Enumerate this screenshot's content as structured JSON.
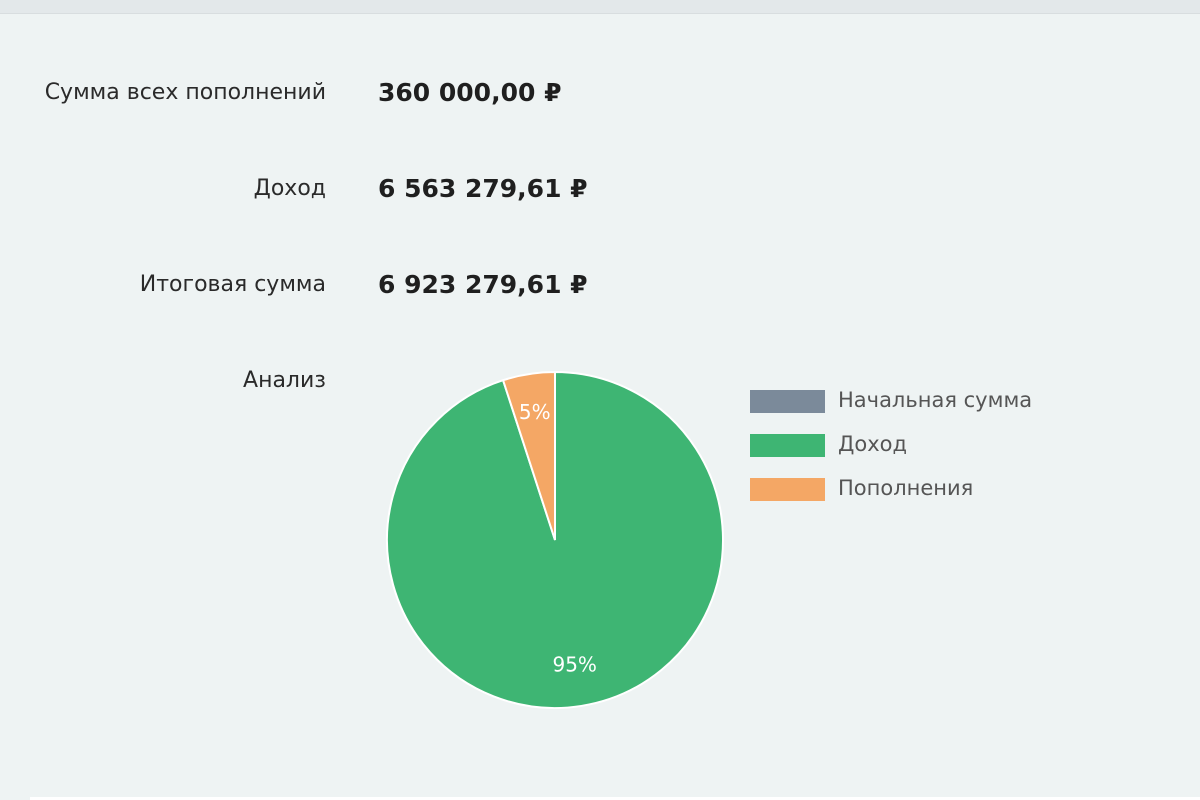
{
  "summary": {
    "deposits": {
      "label": "Сумма всех пополнений",
      "value": "360 000,00 ₽"
    },
    "income": {
      "label": "Доход",
      "value": "6 563 279,61 ₽"
    },
    "total": {
      "label": "Итоговая сумма",
      "value": "6 923 279,61 ₽"
    },
    "analysis": {
      "label": "Анализ"
    }
  },
  "colors": {
    "initial": "#7b8a9a",
    "income": "#3eb573",
    "deposits": "#f4a765",
    "background": "#eef3f3"
  },
  "chart_data": {
    "type": "pie",
    "title": "",
    "start_angle_deg": 0,
    "series": [
      {
        "name": "Начальная сумма",
        "value": 0,
        "label": "",
        "color": "#7b8a9a"
      },
      {
        "name": "Доход",
        "value": 95,
        "label": "95%",
        "color": "#3eb573"
      },
      {
        "name": "Пополнения",
        "value": 5,
        "label": "5%",
        "color": "#f4a765"
      }
    ],
    "legend_position": "right"
  }
}
